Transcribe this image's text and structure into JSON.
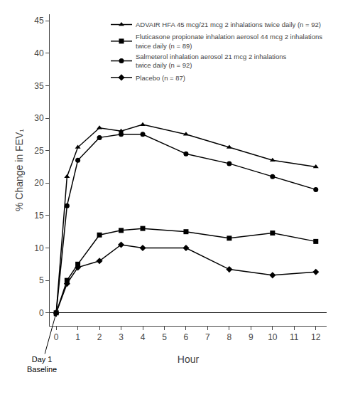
{
  "chart_data": {
    "type": "line",
    "x": [
      0,
      0.5,
      1,
      2,
      3,
      4,
      6,
      8,
      10,
      12
    ],
    "series": [
      {
        "name": "ADVAIR HFA 45 mcg/21 mcg 2 inhalations twice daily (n = 92)",
        "values": [
          0,
          21.0,
          25.5,
          28.5,
          28.0,
          29.0,
          27.5,
          25.5,
          23.5,
          22.5
        ],
        "marker": "triangle"
      },
      {
        "name": "Fluticasone propionate inhalation aerosol 44 mcg 2 inhalations\ntwice daily (n = 89)",
        "values": [
          0,
          5.0,
          7.5,
          12.0,
          12.7,
          13.0,
          12.5,
          11.5,
          12.3,
          11.0
        ],
        "marker": "square"
      },
      {
        "name": "Salmeterol inhalation aerosol 21 mcg 2 inhalations\ntwice daily (n = 92)",
        "values": [
          0,
          16.5,
          23.5,
          27.0,
          27.5,
          27.5,
          24.5,
          23.0,
          21.0,
          19.0
        ],
        "marker": "circle"
      },
      {
        "name": "Placebo (n = 87)",
        "values": [
          0,
          4.5,
          7.0,
          8.0,
          10.5,
          10.0,
          10.0,
          6.7,
          5.8,
          6.3
        ],
        "marker": "diamond"
      }
    ],
    "color": "#000000",
    "xlim": [
      -0.3,
      12.5
    ],
    "ylim": [
      -2,
      46
    ],
    "xticks": [
      0,
      1,
      2,
      3,
      4,
      5,
      6,
      7,
      8,
      9,
      10,
      11,
      12
    ],
    "yticks": [
      0,
      5,
      10,
      15,
      20,
      25,
      30,
      35,
      40,
      45
    ],
    "xlabel": "Hour",
    "ylabel": "% Change in FEV₁",
    "annotation": "Day 1\nBaseline",
    "legend": "upper right",
    "grid": false
  }
}
